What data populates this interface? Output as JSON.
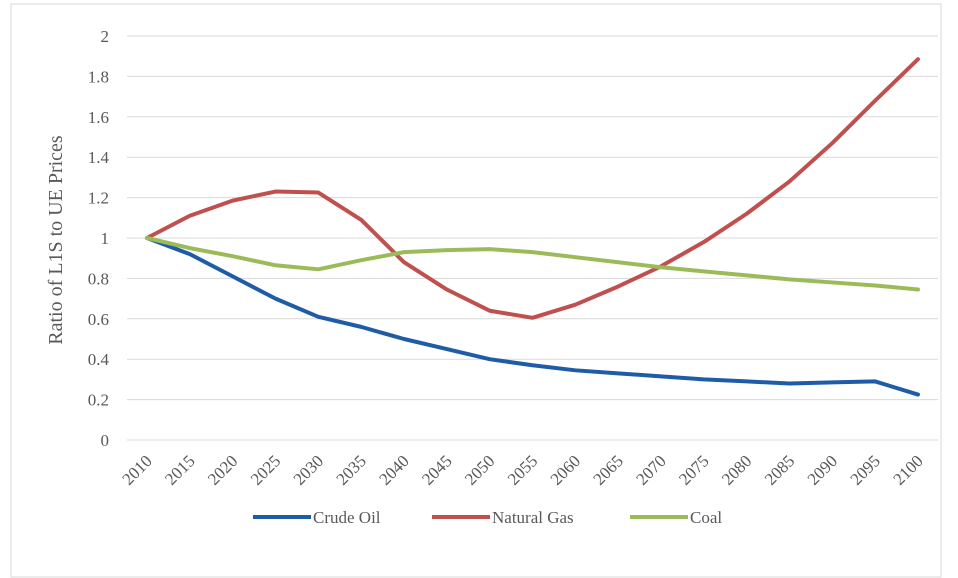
{
  "chart_data": {
    "type": "line",
    "y_label": "Ratio of L1S to UE Prices",
    "categories": [
      "2010",
      "2015",
      "2020",
      "2025",
      "2030",
      "2035",
      "2040",
      "2045",
      "2050",
      "2055",
      "2060",
      "2065",
      "2070",
      "2075",
      "2080",
      "2085",
      "2090",
      "2095",
      "2100"
    ],
    "series": [
      {
        "name": "Crude Oil",
        "color": "#1f5ca8",
        "values": [
          1.0,
          0.92,
          0.81,
          0.7,
          0.61,
          0.56,
          0.5,
          0.45,
          0.4,
          0.37,
          0.345,
          0.33,
          0.315,
          0.3,
          0.29,
          0.28,
          0.285,
          0.29,
          0.225
        ]
      },
      {
        "name": "Natural Gas",
        "color": "#c0504d",
        "values": [
          1.0,
          1.11,
          1.185,
          1.23,
          1.225,
          1.09,
          0.88,
          0.745,
          0.64,
          0.605,
          0.67,
          0.76,
          0.86,
          0.98,
          1.12,
          1.28,
          1.47,
          1.68,
          1.885
        ]
      },
      {
        "name": "Coal",
        "color": "#9bbb59",
        "values": [
          1.0,
          0.95,
          0.91,
          0.865,
          0.845,
          0.89,
          0.93,
          0.94,
          0.945,
          0.93,
          0.905,
          0.88,
          0.855,
          0.835,
          0.815,
          0.795,
          0.78,
          0.765,
          0.745
        ]
      }
    ],
    "ylim": [
      0,
      2
    ],
    "yticks": [
      0,
      0.2,
      0.4,
      0.6,
      0.8,
      1,
      1.2,
      1.4,
      1.6,
      1.8,
      2
    ],
    "grid": true,
    "legend": "bottom"
  }
}
